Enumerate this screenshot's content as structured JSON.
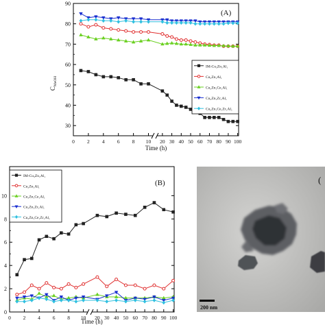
{
  "chart_data": [
    {
      "panel_label": "(A)",
      "type": "line",
      "xlabel": "Time (h)",
      "ylabel": "C",
      "ylabel_sub": "MeOH",
      "ylim": [
        25,
        90
      ],
      "yticks": [
        "30",
        "40",
        "50",
        "60",
        "70",
        "80",
        "90"
      ],
      "ytick_values": [
        30,
        40,
        50,
        60,
        70,
        80,
        90
      ],
      "x_break": "//",
      "x_segments": [
        {
          "ticks": [
            "0",
            "2",
            "4",
            "6",
            "8",
            "10"
          ],
          "tick_values": [
            0,
            2,
            4,
            6,
            8,
            10
          ],
          "range": [
            0,
            10.5
          ]
        },
        {
          "ticks": [
            "20",
            "30",
            "40",
            "50",
            "60",
            "70",
            "80",
            "90",
            "100"
          ],
          "tick_values": [
            20,
            30,
            40,
            50,
            60,
            70,
            80,
            90,
            100
          ],
          "range": [
            15,
            101
          ]
        }
      ],
      "legend": {
        "placement": "right"
      },
      "series": [
        {
          "name": "IM-Cu₃Zn₁Al₁",
          "color": "#222222",
          "marker": "square",
          "x": [
            1,
            2,
            3,
            4,
            5,
            6,
            7,
            8,
            9,
            10,
            20,
            25,
            30,
            35,
            40,
            45,
            50,
            55,
            60,
            65,
            70,
            75,
            80,
            85,
            90,
            95,
            100
          ],
          "values": [
            57,
            56.5,
            55,
            54,
            54,
            53.5,
            52.5,
            52.5,
            50.5,
            50.5,
            47,
            45,
            42,
            40,
            39.5,
            39,
            38,
            37,
            36,
            34,
            34,
            34,
            34,
            33,
            32,
            32,
            32
          ]
        },
        {
          "name": "Cu₃Zn₁Al₁",
          "color": "#e03030",
          "marker": "circle",
          "x": [
            1,
            2,
            3,
            4,
            5,
            6,
            7,
            8,
            9,
            10,
            20,
            25,
            30,
            35,
            40,
            45,
            50,
            55,
            60,
            65,
            70,
            75,
            80,
            85,
            90,
            95,
            100
          ],
          "values": [
            80,
            78.5,
            79.5,
            78,
            77.5,
            77,
            76.5,
            76,
            76,
            76,
            75,
            74,
            73.5,
            72.5,
            72,
            72,
            71.5,
            71,
            70.5,
            70,
            69.8,
            69.5,
            69.5,
            69,
            69,
            69,
            69
          ]
        },
        {
          "name": "Cu₃Zn₁Ce₁Al₁",
          "color": "#6ad020",
          "marker": "triangle",
          "x": [
            1,
            2,
            3,
            4,
            5,
            6,
            7,
            8,
            9,
            10,
            20,
            25,
            30,
            35,
            40,
            45,
            50,
            55,
            60,
            65,
            70,
            75,
            80,
            85,
            90,
            95,
            100
          ],
          "values": [
            74.5,
            73.5,
            72.5,
            73,
            72.5,
            72,
            71.5,
            71,
            71.5,
            72,
            70,
            70.3,
            70.5,
            70.3,
            70,
            70,
            69.8,
            69.5,
            69.5,
            69.5,
            69.4,
            69.3,
            69.3,
            69.2,
            69.1,
            69,
            69
          ]
        },
        {
          "name": "Cu₃Zn₁Zr₁Al₁",
          "color": "#1a2fd0",
          "marker": "triangle-down",
          "x": [
            1,
            2,
            3,
            4,
            5,
            6,
            7,
            8,
            9,
            10,
            20,
            25,
            30,
            35,
            40,
            45,
            50,
            55,
            60,
            65,
            70,
            75,
            80,
            85,
            90,
            95,
            100
          ],
          "values": [
            85,
            83,
            83.5,
            83,
            82.5,
            83,
            82.5,
            82.5,
            82.5,
            82,
            82,
            82,
            81.5,
            81.5,
            81.5,
            81.5,
            81.5,
            81.5,
            81,
            81,
            81,
            81,
            81,
            81,
            81,
            81,
            81
          ]
        },
        {
          "name": "Cu₃Zn₁Ce₁Zr₁Al₁",
          "color": "#30c0e0",
          "marker": "diamond",
          "x": [
            1,
            2,
            3,
            4,
            5,
            6,
            7,
            8,
            9,
            10,
            20,
            25,
            30,
            35,
            40,
            45,
            50,
            55,
            60,
            65,
            70,
            75,
            80,
            85,
            90,
            95,
            100
          ],
          "values": [
            81.5,
            82,
            82,
            81.5,
            81.5,
            81,
            81.5,
            81,
            81,
            81,
            81,
            80.5,
            80.5,
            80.5,
            80.5,
            80.5,
            80.5,
            80,
            80,
            80,
            80,
            80,
            80,
            80,
            80.3,
            80.3,
            80.3
          ]
        }
      ]
    },
    {
      "panel_label": "(B)",
      "type": "line",
      "xlabel": "Time (h)",
      "ylabel": "",
      "ylim": [
        0,
        12.5
      ],
      "yticks": [
        "0",
        "2",
        "4",
        "6",
        "8",
        "10"
      ],
      "ytick_values": [
        0,
        2,
        4,
        6,
        8,
        10
      ],
      "x_break": "//",
      "x_segments": [
        {
          "ticks": [
            "0",
            "2",
            "4",
            "6",
            "8",
            "10"
          ],
          "tick_values": [
            0,
            2,
            4,
            6,
            8,
            10
          ],
          "range": [
            0,
            10.5
          ]
        },
        {
          "ticks": [
            "20",
            "30",
            "40",
            "50",
            "60",
            "70",
            "80",
            "90",
            "100"
          ],
          "tick_values": [
            20,
            30,
            40,
            50,
            60,
            70,
            80,
            90,
            100
          ],
          "range": [
            15,
            101
          ]
        }
      ],
      "legend": {
        "placement": "top-left"
      },
      "series": [
        {
          "name": "IM-Cu₃Zn₁Al₁",
          "color": "#222222",
          "marker": "square",
          "x": [
            1,
            2,
            3,
            4,
            5,
            6,
            7,
            8,
            9,
            10,
            20,
            30,
            40,
            50,
            60,
            70,
            80,
            90,
            100
          ],
          "values": [
            3.2,
            4.5,
            4.6,
            6.2,
            6.5,
            6.3,
            6.8,
            6.7,
            7.5,
            7.6,
            8.3,
            8.2,
            8.5,
            8.4,
            8.3,
            9,
            9.4,
            8.8,
            8.6
          ]
        },
        {
          "name": "Cu₃Zn₁Al₁",
          "color": "#e03030",
          "marker": "circle",
          "x": [
            1,
            2,
            3,
            4,
            5,
            6,
            7,
            8,
            9,
            10,
            20,
            30,
            40,
            50,
            60,
            70,
            80,
            90,
            100
          ],
          "values": [
            1.5,
            1.7,
            2.3,
            2.0,
            2.5,
            2.1,
            2.0,
            2.4,
            2.1,
            2.4,
            3.0,
            2.2,
            2.8,
            2.3,
            2.3,
            2.0,
            2.3,
            2.0,
            2.7
          ]
        },
        {
          "name": "Cu₃Zn₁Ce₁Al₁",
          "color": "#6ad020",
          "marker": "triangle",
          "x": [
            1,
            2,
            3,
            4,
            5,
            6,
            7,
            8,
            9,
            10,
            20,
            30,
            40,
            50,
            60,
            70,
            80,
            90,
            100
          ],
          "values": [
            1.0,
            1.2,
            1.1,
            1.6,
            1.3,
            1.4,
            1.1,
            1.2,
            1.3,
            1.2,
            1.5,
            1.3,
            1.3,
            1.2,
            1.2,
            1.2,
            1.3,
            1.2,
            1.3
          ]
        },
        {
          "name": "Cu₃Zn₁Zr₁Al₁",
          "color": "#1a2fd0",
          "marker": "triangle-down",
          "x": [
            1,
            2,
            3,
            4,
            5,
            6,
            7,
            8,
            9,
            10,
            20,
            30,
            40,
            50,
            60,
            70,
            80,
            90,
            100
          ],
          "values": [
            1.2,
            1.3,
            1.4,
            1.2,
            1.5,
            1.0,
            1.3,
            1.0,
            1.2,
            1.3,
            1.1,
            1.4,
            1.7,
            1.0,
            1.2,
            1.1,
            1.3,
            1.0,
            1.2
          ]
        },
        {
          "name": "Cu₃Zn₁Ce₁Zr₁Al₁",
          "color": "#30c0e0",
          "marker": "diamond",
          "x": [
            1,
            2,
            3,
            4,
            5,
            6,
            7,
            8,
            9,
            10,
            20,
            30,
            40,
            50,
            60,
            70,
            80,
            90,
            100
          ],
          "values": [
            0.9,
            0.9,
            1.0,
            1.2,
            1.1,
            0.9,
            1.0,
            1.0,
            0.9,
            1.0,
            1.0,
            0.9,
            1.0,
            0.9,
            1.0,
            0.9,
            1.0,
            0.8,
            1.0
          ]
        }
      ]
    }
  ],
  "tem_image": {
    "panel_label": "(",
    "scale_bar_label": "200 nm"
  }
}
